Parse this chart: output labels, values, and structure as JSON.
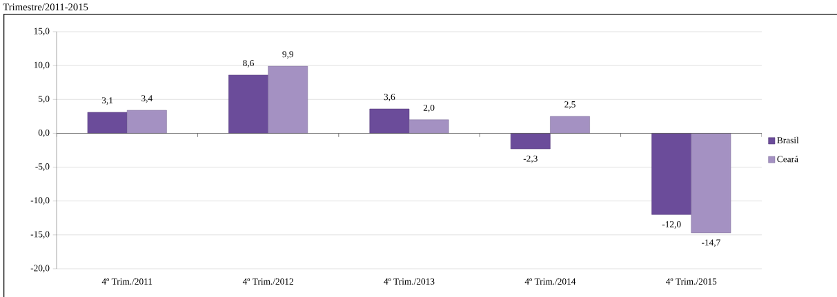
{
  "chart_data": {
    "type": "bar",
    "title": "Trimestre/2011-2015",
    "categories": [
      "4º Trim./2011",
      "4º Trim./2012",
      "4º Trim./2013",
      "4º Trim./2014",
      "4º Trim./2015"
    ],
    "series": [
      {
        "name": "Brasil",
        "color": "#6b4c9a",
        "values": [
          3.1,
          8.6,
          3.6,
          -2.3,
          -12.0
        ],
        "value_labels": [
          "3,1",
          "8,6",
          "3,6",
          "-2,3",
          "-12,0"
        ]
      },
      {
        "name": "Ceará",
        "color": "#a491c2",
        "values": [
          3.4,
          9.9,
          2.0,
          2.5,
          -14.7
        ],
        "value_labels": [
          "3,4",
          "9,9",
          "2,0",
          "2,5",
          "-14,7"
        ]
      }
    ],
    "ylim": [
      -20,
      15
    ],
    "yticks": [
      {
        "value": -20,
        "label": "-20,0"
      },
      {
        "value": -15,
        "label": "-15,0"
      },
      {
        "value": -10,
        "label": "-10,0"
      },
      {
        "value": -5,
        "label": "-5,0"
      },
      {
        "value": 0,
        "label": "0,0"
      },
      {
        "value": 5,
        "label": "5,0"
      },
      {
        "value": 10,
        "label": "10,0"
      },
      {
        "value": 15,
        "label": "15,0"
      }
    ],
    "grid": "y",
    "legend": "right"
  }
}
